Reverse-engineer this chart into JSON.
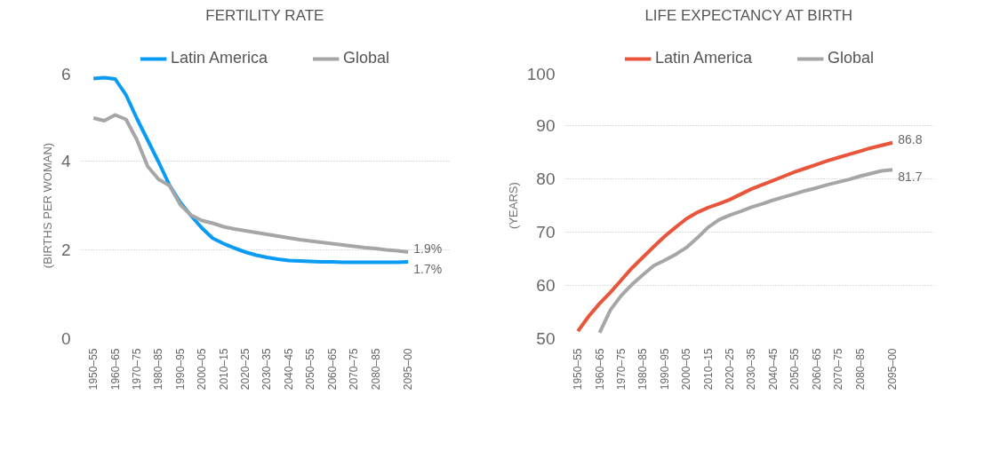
{
  "chart_data": [
    {
      "type": "line",
      "title": "FERTILITY RATE",
      "ylabel": "(BIRTHS PER WOMAN)",
      "categories": [
        "1950–55",
        null,
        "1960–65",
        null,
        "1970–75",
        null,
        "1980–85",
        null,
        "1990–95",
        null,
        "2000–05",
        null,
        "2010–15",
        null,
        "2020–25",
        null,
        "2030–35",
        null,
        "2040–45",
        null,
        "2050–55",
        null,
        "2060–65",
        null,
        "2070–75",
        null,
        "2080–85",
        null,
        null,
        "2095–00"
      ],
      "series": [
        {
          "name": "Latin America",
          "color": "#0a9bf5",
          "values": [
            5.86,
            5.88,
            5.85,
            5.49,
            4.96,
            4.47,
            3.98,
            3.46,
            3.07,
            2.77,
            2.49,
            2.26,
            2.14,
            2.04,
            1.95,
            1.88,
            1.83,
            1.79,
            1.76,
            1.75,
            1.74,
            1.73,
            1.73,
            1.72,
            1.72,
            1.72,
            1.72,
            1.72,
            1.72,
            1.73
          ],
          "value_labels": [
            null,
            null,
            null,
            null,
            null,
            null,
            null,
            null,
            null,
            null,
            null,
            null,
            null,
            null,
            null,
            null,
            null,
            null,
            null,
            null,
            null,
            null,
            null,
            null,
            null,
            null,
            null,
            null,
            null,
            "1.7%"
          ]
        },
        {
          "name": "Global",
          "color": "#a6a6a6",
          "values": [
            4.97,
            4.91,
            5.04,
            4.94,
            4.48,
            3.88,
            3.59,
            3.45,
            3.02,
            2.78,
            2.66,
            2.6,
            2.52,
            2.47,
            2.43,
            2.39,
            2.35,
            2.31,
            2.27,
            2.23,
            2.2,
            2.17,
            2.14,
            2.11,
            2.08,
            2.05,
            2.03,
            2.0,
            1.98,
            1.95
          ],
          "value_labels": [
            null,
            null,
            null,
            null,
            null,
            null,
            null,
            null,
            null,
            null,
            null,
            null,
            null,
            null,
            null,
            null,
            null,
            null,
            null,
            null,
            null,
            null,
            null,
            null,
            null,
            null,
            null,
            null,
            null,
            "1.9%"
          ]
        }
      ],
      "ylim": [
        0,
        6
      ],
      "yticks": [
        0,
        2,
        4,
        6
      ],
      "grid": "y",
      "legend": "top",
      "line_style": "solid"
    },
    {
      "type": "line",
      "title": "LIFE EXPECTANCY AT BIRTH",
      "ylabel": "(YEARS)",
      "categories": [
        "1950–55",
        null,
        "1960–65",
        null,
        "1970–75",
        null,
        "1980–85",
        null,
        "1990–95",
        null,
        "2000–05",
        null,
        "2010–15",
        null,
        "2020–25",
        null,
        "2030–35",
        null,
        "2040–45",
        null,
        "2050–55",
        null,
        "2060–65",
        null,
        "2070–75",
        null,
        "2080–85",
        null,
        null,
        "2095–00"
      ],
      "series": [
        {
          "name": "Latin America",
          "color": "#e8553a",
          "values": [
            51.4,
            54.2,
            56.6,
            58.7,
            61.0,
            63.3,
            65.3,
            67.3,
            69.2,
            70.9,
            72.5,
            73.7,
            74.6,
            75.3,
            76.1,
            77.1,
            78.1,
            78.9,
            79.7,
            80.5,
            81.3,
            82.0,
            82.7,
            83.4,
            84.0,
            84.6,
            85.2,
            85.8,
            86.3,
            86.8
          ],
          "value_labels": [
            null,
            null,
            null,
            null,
            null,
            null,
            null,
            null,
            null,
            null,
            null,
            null,
            null,
            null,
            null,
            null,
            null,
            null,
            null,
            null,
            null,
            null,
            null,
            null,
            null,
            null,
            null,
            null,
            null,
            "86.8"
          ]
        },
        {
          "name": "Global",
          "color": "#a6a6a6",
          "values": [
            null,
            null,
            51.1,
            55.4,
            58.1,
            60.2,
            62.0,
            63.7,
            64.7,
            65.8,
            67.1,
            68.9,
            70.9,
            72.3,
            73.2,
            73.9,
            74.7,
            75.3,
            76.0,
            76.6,
            77.2,
            77.8,
            78.3,
            78.9,
            79.4,
            79.9,
            80.5,
            81.0,
            81.5,
            81.7
          ],
          "value_labels": [
            null,
            null,
            null,
            null,
            null,
            null,
            null,
            null,
            null,
            null,
            null,
            null,
            null,
            null,
            null,
            null,
            null,
            null,
            null,
            null,
            null,
            null,
            null,
            null,
            null,
            null,
            null,
            null,
            null,
            "81.7"
          ]
        }
      ],
      "ylim": [
        50,
        100
      ],
      "yticks": [
        50,
        60,
        70,
        80,
        90,
        100
      ],
      "grid": "y",
      "legend": "top",
      "line_style": "solid"
    }
  ]
}
